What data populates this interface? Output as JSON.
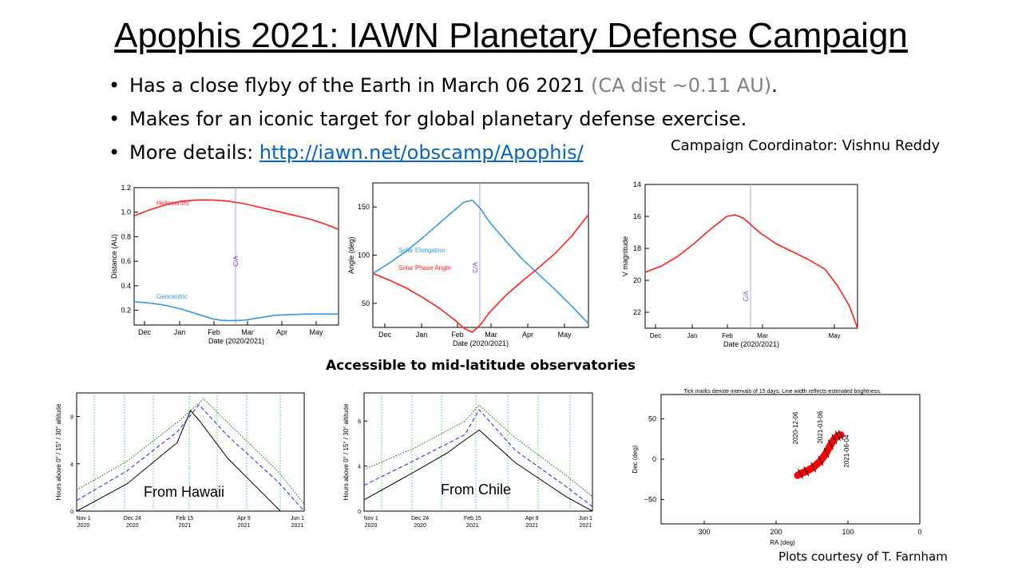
{
  "slide": {
    "title": "Apophis 2021: IAWN Planetary Defense Campaign",
    "bullets": {
      "b1_text": "Has a close flyby of the Earth in March 06 2021",
      "b1_note": "(CA dist ~0.11 AU)",
      "b1_end": ".",
      "b2_text": "Makes for an iconic target for global planetary defense exercise.",
      "b3_text": "More details: ",
      "b3_link": "http://iawn.net/obscamp/Apophis/"
    },
    "coordinator": "Campaign Coordinator: Vishnu Reddy",
    "accessible_caption": "Accessible to mid-latitude observatories",
    "credit": "Plots courtesy of  T. Farnham",
    "colors": {
      "heliocentric": "#ff2020",
      "geocentric": "#3399e6",
      "ca_line": "#b0a0e0",
      "green_grid": "#22bb22",
      "blue_dash": "#2222dd",
      "link": "#0563c1",
      "note_gray": "#808080"
    }
  },
  "chart_data": [
    {
      "type": "line",
      "xlabel": "Date (2020/2021)",
      "ylabel": "Distance (AU)",
      "ylim": [
        0.08,
        1.2
      ],
      "ticks_y": [
        "1.2",
        "1.0",
        "0.8",
        "0.6",
        "0.4",
        "0.2"
      ],
      "ticks_x": [
        "Dec",
        "Jan",
        "Feb",
        "Mar",
        "Apr",
        "May"
      ],
      "marker_label": "C/A",
      "series": [
        {
          "name": "Heliocentric",
          "color": "#ff2020",
          "x": [
            0,
            20,
            40,
            60,
            80,
            100,
            120,
            140,
            160,
            180,
            200,
            220,
            240,
            260
          ],
          "y": [
            0.97,
            1.02,
            1.06,
            1.09,
            1.1,
            1.1,
            1.09,
            1.07,
            1.04,
            1.01,
            0.98,
            0.95,
            0.91,
            0.86
          ]
        },
        {
          "name": "Geocentric",
          "color": "#3399e6",
          "x": [
            0,
            20,
            40,
            60,
            80,
            100,
            110,
            120,
            140,
            160,
            180,
            200,
            220,
            240,
            260
          ],
          "y": [
            0.27,
            0.26,
            0.24,
            0.21,
            0.17,
            0.13,
            0.12,
            0.115,
            0.12,
            0.14,
            0.16,
            0.165,
            0.17,
            0.17,
            0.17
          ]
        }
      ]
    },
    {
      "type": "line",
      "xlabel": "Date (2020/2021)",
      "ylabel": "Angle (deg)",
      "ylim": [
        25,
        175
      ],
      "ticks_y": [
        "150",
        "100",
        "50"
      ],
      "ticks_x": [
        "Dec",
        "Jan",
        "Feb",
        "Mar",
        "Apr",
        "May"
      ],
      "marker_label": "C/A",
      "series": [
        {
          "name": "Solar Elongation",
          "color": "#3399e6",
          "x": [
            0,
            20,
            40,
            60,
            80,
            100,
            110,
            120,
            130,
            140,
            160,
            180,
            200,
            220,
            240,
            260
          ],
          "y": [
            81,
            92,
            104,
            118,
            133,
            148,
            155,
            157,
            148,
            135,
            115,
            96,
            80,
            64,
            47,
            29
          ]
        },
        {
          "name": "Solar Phase Angle",
          "color": "#ff2020",
          "x": [
            0,
            20,
            40,
            60,
            80,
            100,
            110,
            120,
            130,
            140,
            160,
            180,
            200,
            220,
            240,
            260
          ],
          "y": [
            81,
            74,
            66,
            56,
            45,
            32,
            24,
            20,
            28,
            40,
            58,
            73,
            87,
            102,
            120,
            142
          ]
        }
      ]
    },
    {
      "type": "line",
      "xlabel": "Date (2020/2021)",
      "ylabel": "V magnitude",
      "ylim": [
        23,
        14
      ],
      "ticks_y": [
        "14",
        "16",
        "18",
        "20",
        "22"
      ],
      "ticks_x": [
        "Dec",
        "Jan",
        "Feb",
        "Mar",
        "May"
      ],
      "marker_label": "C/A",
      "series": [
        {
          "name": "",
          "color": "#ff2020",
          "x": [
            0,
            20,
            40,
            60,
            80,
            100,
            110,
            120,
            140,
            160,
            180,
            200,
            220,
            235,
            250,
            260
          ],
          "y": [
            19.5,
            19.1,
            18.5,
            17.7,
            16.8,
            16.0,
            15.9,
            16.1,
            17.0,
            17.7,
            18.2,
            18.7,
            19.3,
            20.3,
            21.6,
            23.0
          ]
        }
      ]
    },
    {
      "type": "line",
      "title": "From Hawaii",
      "ylabel": "Hours above 0° / 15° / 30° altitude",
      "ylim": [
        0,
        10
      ],
      "ticks_y": [
        "0",
        "4",
        "8"
      ],
      "ticks_x": [
        "Nov 1\n2020",
        "Dec 24\n2020",
        "Feb 15\n2021",
        "Apr 9\n2021",
        "Jun 1\n2021"
      ],
      "series": [
        {
          "name": "",
          "style": "dotted",
          "color": "#007700",
          "x": [
            0,
            53,
            106,
            134,
            159,
            212,
            240
          ],
          "y": [
            1.8,
            4.2,
            7.5,
            9.5,
            7.5,
            3.4,
            0.6
          ]
        },
        {
          "name": "",
          "style": "dashed",
          "color": "#2222dd",
          "x": [
            0,
            53,
            106,
            129,
            159,
            212,
            240
          ],
          "y": [
            0.9,
            3.4,
            6.7,
            9.0,
            6.4,
            2.5,
            0
          ]
        },
        {
          "name": "",
          "style": "solid",
          "color": "#000000",
          "x": [
            0,
            53,
            106,
            120,
            129,
            159,
            200,
            215
          ],
          "y": [
            0,
            2.3,
            5.8,
            8.5,
            7.7,
            4.5,
            1.2,
            0
          ]
        }
      ]
    },
    {
      "type": "line",
      "title": "From Chile",
      "ylabel": "Hours above 0° / 15° / 30° altitude",
      "ylim": [
        0,
        10.5
      ],
      "ticks_y": [
        "0",
        "4",
        "8"
      ],
      "ticks_x": [
        "Nov 1\n2020",
        "Dec 24\n2020",
        "Feb 15\n2021",
        "Apr 9\n2021",
        "Jun 1\n2021"
      ],
      "series": [
        {
          "name": "",
          "style": "dotted",
          "color": "#007700",
          "x": [
            0,
            53,
            106,
            121,
            159,
            212,
            240
          ],
          "y": [
            3.7,
            5.6,
            8.0,
            9.4,
            6.5,
            3.2,
            1.3
          ]
        },
        {
          "name": "",
          "style": "dashed",
          "color": "#2222dd",
          "x": [
            0,
            53,
            106,
            121,
            159,
            212,
            240
          ],
          "y": [
            2.3,
            4.5,
            6.8,
            9.0,
            5.4,
            2.2,
            0.4
          ]
        },
        {
          "name": "",
          "style": "solid",
          "color": "#000000",
          "x": [
            0,
            53,
            88,
            104,
            121,
            159,
            212,
            240
          ],
          "y": [
            1.0,
            3.5,
            5.2,
            6.2,
            7.2,
            4.3,
            1.3,
            0
          ]
        }
      ]
    },
    {
      "type": "scatter",
      "title": "Tick marks denote intervals of 15 days.  Line width reflects estimated brightness.",
      "xlabel": "RA (deg)",
      "ylabel": "Dec (deg)",
      "xlim": [
        360,
        0
      ],
      "ylim": [
        -80,
        80
      ],
      "ticks_x": [
        "300",
        "200",
        "100",
        "0"
      ],
      "ticks_y": [
        "50",
        "0",
        "−50"
      ],
      "annotations": [
        "2020-12-06",
        "2021-03-06",
        "2021-06-04"
      ],
      "series": [
        {
          "name": "",
          "color": "#ff0000",
          "ra": [
            170,
            166,
            158,
            148,
            138,
            130,
            124,
            119,
            114,
            110
          ],
          "dec": [
            -20,
            -18,
            -15,
            -10,
            -2,
            8,
            18,
            25,
            29,
            30
          ]
        }
      ]
    }
  ]
}
